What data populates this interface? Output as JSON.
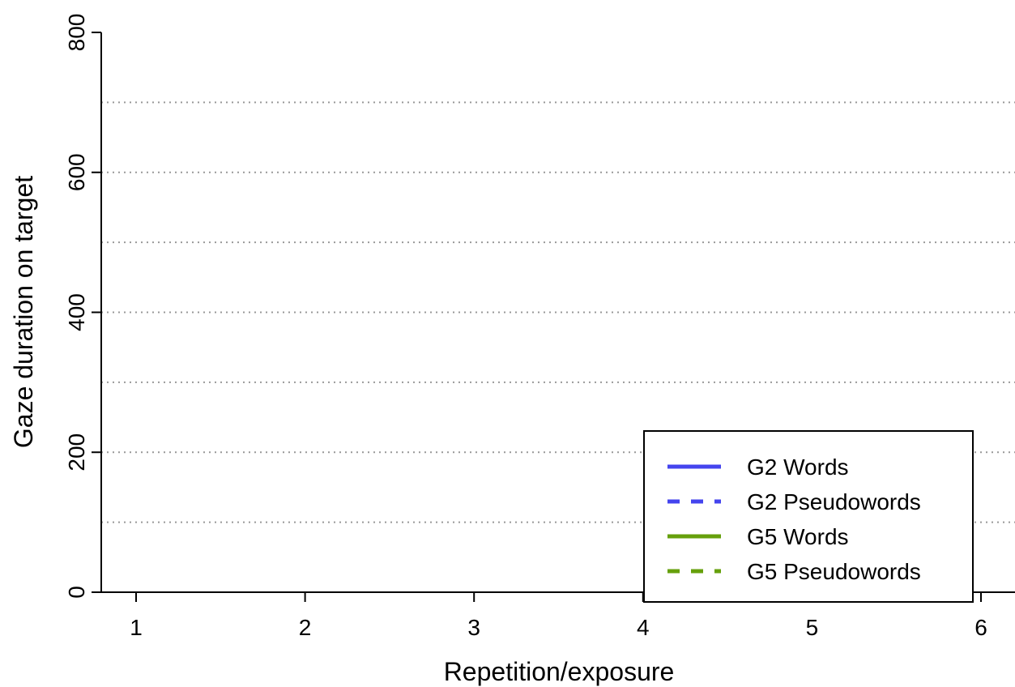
{
  "chart_data": {
    "type": "line",
    "title": "",
    "xlabel": "Repetition/exposure",
    "ylabel": "Gaze duration on target",
    "xlim": [
      0.8,
      6.2
    ],
    "ylim": [
      0,
      800
    ],
    "x_ticks": [
      1,
      2,
      3,
      4,
      5,
      6
    ],
    "y_ticks": [
      0,
      200,
      400,
      600,
      800
    ],
    "grid_y": [
      100,
      200,
      300,
      400,
      500,
      600,
      700
    ],
    "grid": true,
    "legend_position": "bottom-right",
    "series": [
      {
        "name": "G2 Words",
        "color": "#4444ee",
        "dash": "solid",
        "x": [],
        "values": []
      },
      {
        "name": "G2 Pseudowords",
        "color": "#4444ee",
        "dash": "dashed",
        "x": [],
        "values": []
      },
      {
        "name": "G5 Words",
        "color": "#66a00c",
        "dash": "solid",
        "x": [],
        "values": []
      },
      {
        "name": "G5 Pseudowords",
        "color": "#66a00c",
        "dash": "dashed",
        "x": [],
        "values": []
      }
    ]
  }
}
